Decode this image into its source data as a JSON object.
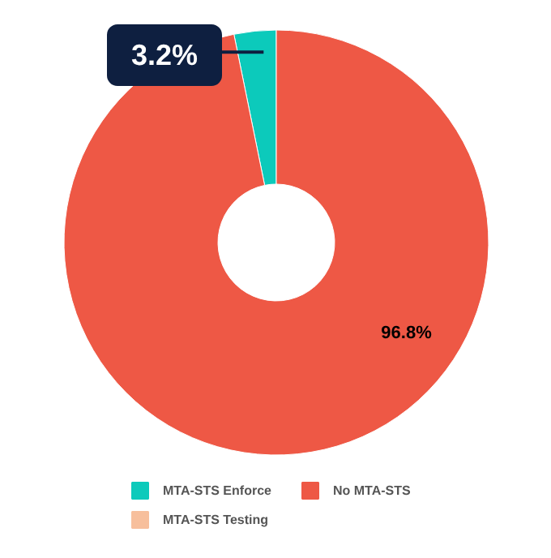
{
  "chart_data": {
    "type": "donut",
    "categories": [
      "MTA-STS Enforce",
      "No MTA-STS",
      "MTA-STS Testing"
    ],
    "values": [
      3.2,
      96.8,
      0
    ],
    "colors": [
      "#0ccabb",
      "#ee5845",
      "#f7bf9c"
    ],
    "value_labels": [
      "3.2%",
      "96.8%",
      null
    ],
    "legend": "bottom"
  }
}
